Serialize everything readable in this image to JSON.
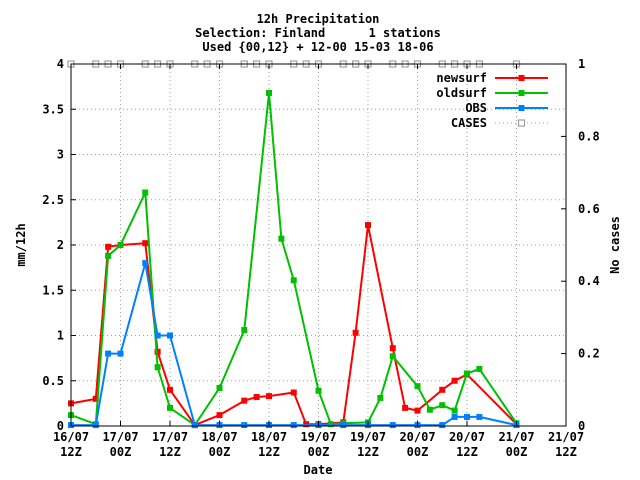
{
  "chart_data": {
    "type": "line",
    "title_lines": [
      "12h Precipitation",
      "Selection: Finland      1 stations",
      "Used {00,12} + 12-00 15-03 18-06"
    ],
    "xlabel": "Date",
    "ylabel": "mm/12h",
    "y2label": "No cases",
    "x_domain": [
      0,
      10
    ],
    "ylim": [
      0,
      4
    ],
    "y2lim": [
      0,
      1
    ],
    "grid": true,
    "legend_position": "top-right",
    "x_ticks": [
      {
        "x": 0,
        "line1": "16/07",
        "line2": "12Z"
      },
      {
        "x": 1,
        "line1": "17/07",
        "line2": "00Z"
      },
      {
        "x": 2,
        "line1": "17/07",
        "line2": "12Z"
      },
      {
        "x": 3,
        "line1": "18/07",
        "line2": "00Z"
      },
      {
        "x": 4,
        "line1": "18/07",
        "line2": "12Z"
      },
      {
        "x": 5,
        "line1": "19/07",
        "line2": "00Z"
      },
      {
        "x": 6,
        "line1": "19/07",
        "line2": "12Z"
      },
      {
        "x": 7,
        "line1": "20/07",
        "line2": "00Z"
      },
      {
        "x": 8,
        "line1": "20/07",
        "line2": "12Z"
      },
      {
        "x": 9,
        "line1": "21/07",
        "line2": "00Z"
      },
      {
        "x": 10,
        "line1": "21/07",
        "line2": "12Z"
      }
    ],
    "y_ticks": [
      {
        "v": 0,
        "label": "0"
      },
      {
        "v": 0.5,
        "label": "0.5"
      },
      {
        "v": 1,
        "label": "1"
      },
      {
        "v": 1.5,
        "label": "1.5"
      },
      {
        "v": 2,
        "label": "2"
      },
      {
        "v": 2.5,
        "label": "2.5"
      },
      {
        "v": 3,
        "label": "3"
      },
      {
        "v": 3.5,
        "label": "3.5"
      },
      {
        "v": 4,
        "label": "4"
      }
    ],
    "y2_ticks": [
      {
        "v": 0,
        "label": "0"
      },
      {
        "v": 0.2,
        "label": "0.2"
      },
      {
        "v": 0.4,
        "label": "0.4"
      },
      {
        "v": 0.6,
        "label": "0.6"
      },
      {
        "v": 0.8,
        "label": "0.8"
      },
      {
        "v": 1,
        "label": "1"
      }
    ],
    "series": [
      {
        "name": "newsurf",
        "color": "#ff0000",
        "axis": "y1",
        "points": [
          [
            0.0,
            0.25
          ],
          [
            0.5,
            0.3
          ],
          [
            0.75,
            1.98
          ],
          [
            1.0,
            2.0
          ],
          [
            1.5,
            2.02
          ],
          [
            1.75,
            0.82
          ],
          [
            2.0,
            0.4
          ],
          [
            2.5,
            0.01
          ],
          [
            3.0,
            0.12
          ],
          [
            3.5,
            0.28
          ],
          [
            3.75,
            0.32
          ],
          [
            4.0,
            0.33
          ],
          [
            4.5,
            0.37
          ],
          [
            4.75,
            0.02
          ],
          [
            5.0,
            0.02
          ],
          [
            5.5,
            0.04
          ],
          [
            5.75,
            1.03
          ],
          [
            6.0,
            2.22
          ],
          [
            6.5,
            0.86
          ],
          [
            6.75,
            0.2
          ],
          [
            7.0,
            0.17
          ],
          [
            7.5,
            0.4
          ],
          [
            7.75,
            0.5
          ],
          [
            8.0,
            0.57
          ],
          [
            9.0,
            0.02
          ]
        ]
      },
      {
        "name": "oldsurf",
        "color": "#00c000",
        "axis": "y1",
        "points": [
          [
            0.0,
            0.12
          ],
          [
            0.5,
            0.02
          ],
          [
            0.75,
            1.88
          ],
          [
            1.0,
            2.0
          ],
          [
            1.5,
            2.58
          ],
          [
            1.75,
            0.65
          ],
          [
            2.0,
            0.2
          ],
          [
            2.5,
            0.01
          ],
          [
            3.0,
            0.42
          ],
          [
            3.5,
            1.06
          ],
          [
            4.0,
            3.68
          ],
          [
            4.25,
            2.07
          ],
          [
            4.5,
            1.61
          ],
          [
            5.0,
            0.39
          ],
          [
            5.25,
            0.02
          ],
          [
            5.5,
            0.03
          ],
          [
            6.0,
            0.04
          ],
          [
            6.25,
            0.31
          ],
          [
            6.5,
            0.77
          ],
          [
            7.0,
            0.44
          ],
          [
            7.25,
            0.18
          ],
          [
            7.5,
            0.23
          ],
          [
            7.75,
            0.17
          ],
          [
            8.0,
            0.58
          ],
          [
            8.25,
            0.63
          ],
          [
            9.0,
            0.03
          ]
        ]
      },
      {
        "name": "OBS",
        "color": "#0080ff",
        "axis": "y1",
        "points": [
          [
            0.0,
            0.01
          ],
          [
            0.5,
            0.01
          ],
          [
            0.75,
            0.8
          ],
          [
            1.0,
            0.8
          ],
          [
            1.5,
            1.8
          ],
          [
            1.75,
            1.0
          ],
          [
            2.0,
            1.0
          ],
          [
            2.5,
            0.01
          ],
          [
            3.0,
            0.01
          ],
          [
            3.5,
            0.01
          ],
          [
            4.0,
            0.01
          ],
          [
            4.5,
            0.01
          ],
          [
            5.0,
            0.01
          ],
          [
            5.5,
            0.01
          ],
          [
            6.0,
            0.01
          ],
          [
            6.5,
            0.01
          ],
          [
            7.0,
            0.01
          ],
          [
            7.5,
            0.01
          ],
          [
            7.75,
            0.1
          ],
          [
            8.0,
            0.1
          ],
          [
            8.25,
            0.1
          ],
          [
            9.0,
            0.01
          ]
        ]
      },
      {
        "name": "CASES",
        "color": "#a0a0a0",
        "axis": "y2",
        "marker_only": true,
        "points": [
          [
            0.0,
            1
          ],
          [
            0.5,
            1
          ],
          [
            0.75,
            1
          ],
          [
            1.0,
            1
          ],
          [
            1.5,
            1
          ],
          [
            1.75,
            1
          ],
          [
            2.0,
            1
          ],
          [
            2.5,
            1
          ],
          [
            2.75,
            1
          ],
          [
            3.0,
            1
          ],
          [
            3.5,
            1
          ],
          [
            3.75,
            1
          ],
          [
            4.0,
            1
          ],
          [
            4.5,
            1
          ],
          [
            4.75,
            1
          ],
          [
            5.0,
            1
          ],
          [
            5.5,
            1
          ],
          [
            5.75,
            1
          ],
          [
            6.0,
            1
          ],
          [
            6.5,
            1
          ],
          [
            6.75,
            1
          ],
          [
            7.0,
            1
          ],
          [
            7.5,
            1
          ],
          [
            7.75,
            1
          ],
          [
            8.0,
            1
          ],
          [
            8.25,
            1
          ],
          [
            9.0,
            1
          ]
        ]
      }
    ]
  }
}
